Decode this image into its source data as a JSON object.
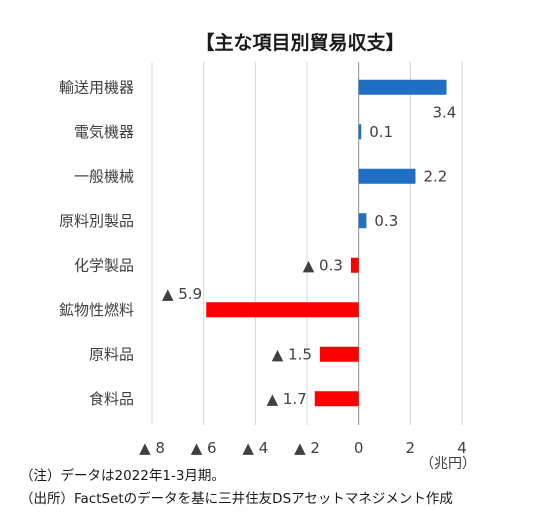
{
  "chart_data": {
    "type": "bar",
    "orientation": "horizontal",
    "title": "【主な項目別貿易収支】",
    "categories": [
      "輸送用機器",
      "電気機器",
      "一般機械",
      "原料別製品",
      "化学製品",
      "鉱物性燃料",
      "原料品",
      "食料品"
    ],
    "values": [
      3.4,
      0.1,
      2.2,
      0.3,
      -0.3,
      -5.9,
      -1.5,
      -1.7
    ],
    "data_labels": [
      "3.4",
      "0.1",
      "2.2",
      "0.3",
      "▲ 0.3",
      "▲ 5.9",
      "▲ 1.5",
      "▲ 1.7"
    ],
    "xlim": [
      -8,
      4
    ],
    "x_ticks": [
      -8,
      -6,
      -4,
      -2,
      0,
      2,
      4
    ],
    "x_tick_labels": [
      "▲ 8",
      "▲ 6",
      "▲ 4",
      "▲ 2",
      "0",
      "2",
      "4"
    ],
    "x_unit": "（兆円）",
    "grid": "vertical",
    "colors": {
      "positive": "#1f6fc5",
      "negative": "#ff0000"
    }
  },
  "notes": [
    "（注）データは2022年1-3月期。",
    "（出所）FactSetのデータを基に三井住友DSアセットマネジメント作成"
  ]
}
